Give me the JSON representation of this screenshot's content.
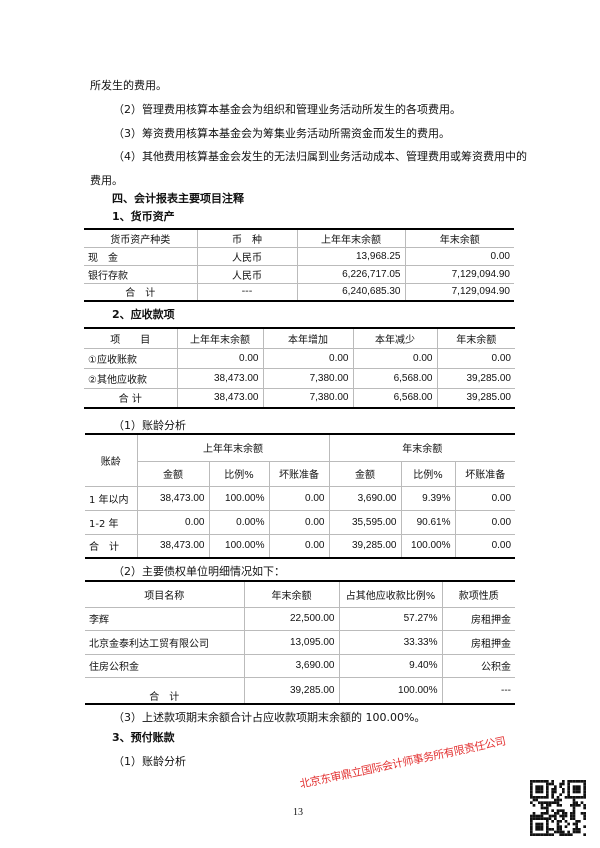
{
  "paragraphs": [
    "所发生的费用。",
    "（2）管理费用核算本基金会为组织和管理业务活动所发生的各项费用。",
    "（3）筹资费用核算本基金会为筹集业务活动所需资金而发生的费用。",
    "（4）其他费用核算基金会发生的无法归属到业务活动成本、管理费用或筹资费用中的",
    "费用。"
  ],
  "section_title": "四、会计报表主要项目注释",
  "cash": {
    "title": "1、货币资产",
    "headers": [
      "货币资产种类",
      "币　种",
      "上年年末余额",
      "年末余额"
    ],
    "rows": [
      [
        "现　金",
        "人民币",
        "13,968.25",
        "0.00"
      ],
      [
        "银行存款",
        "人民币",
        "6,226,717.05",
        "7,129,094.90"
      ],
      [
        "合　计",
        "---",
        "6,240,685.30",
        "7,129,094.90"
      ]
    ]
  },
  "receivables": {
    "title": "2、应收款项",
    "headers": [
      "项　　目",
      "上年年末余额",
      "本年增加",
      "本年减少",
      "年末余额"
    ],
    "rows": [
      [
        "①应收账款",
        "0.00",
        "0.00",
        "0.00",
        "0.00"
      ],
      [
        "②其他应收款",
        "38,473.00",
        "7,380.00",
        "6,568.00",
        "39,285.00"
      ],
      [
        "合 计",
        "38,473.00",
        "7,380.00",
        "6,568.00",
        "39,285.00"
      ]
    ]
  },
  "aging": {
    "title": "（1）账龄分析",
    "age_header": "账龄",
    "group_headers": [
      "上年年末余额",
      "年末余额"
    ],
    "sub_headers": [
      "金额",
      "比例%",
      "坏账准备",
      "金额",
      "比例%",
      "坏账准备"
    ],
    "rows": [
      [
        "1 年以内",
        "38,473.00",
        "100.00%",
        "0.00",
        "3,690.00",
        "9.39%",
        "0.00"
      ],
      [
        "1-2 年",
        "0.00",
        "0.00%",
        "0.00",
        "35,595.00",
        "90.61%",
        "0.00"
      ],
      [
        "合　计",
        "38,473.00",
        "100.00%",
        "0.00",
        "39,285.00",
        "100.00%",
        "0.00"
      ]
    ]
  },
  "debtors": {
    "title": "（2）主要债权单位明细情况如下：",
    "headers": [
      "项目名称",
      "年末余额",
      "占其他应收款比例%",
      "款项性质"
    ],
    "rows": [
      [
        "李辉",
        "22,500.00",
        "57.27%",
        "房租押金"
      ],
      [
        "北京金泰利达工贸有限公司",
        "13,095.00",
        "33.33%",
        "房租押金"
      ],
      [
        "住房公积金",
        "3,690.00",
        "9.40%",
        "公积金"
      ],
      [
        "合　计",
        "39,285.00",
        "100.00%",
        "---"
      ]
    ]
  },
  "note3": "（3）上述款项期末余额合计占应收款项期末余额的 100.00%。",
  "prepaid_title": "3、预付账款",
  "prepaid_aging": "（1）账龄分析",
  "page_number": "13",
  "stamp_text": "北京东审鼎立国际会计师事务所有限责任公司",
  "stamp_color": "#e33333"
}
